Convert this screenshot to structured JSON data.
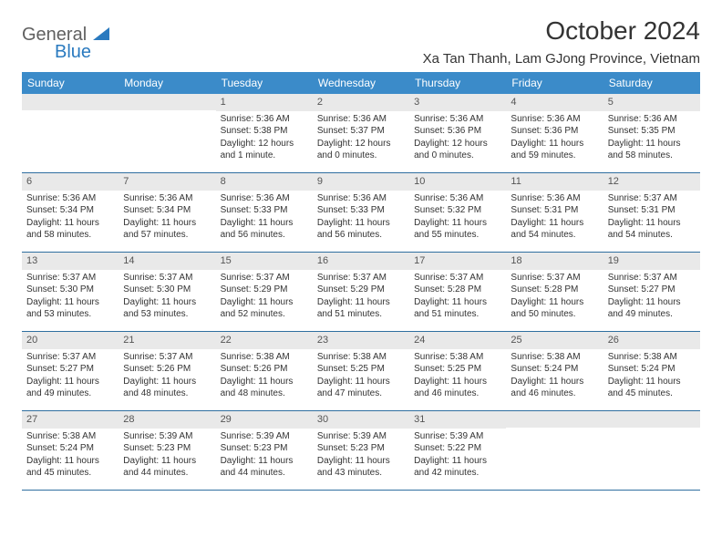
{
  "logo": {
    "general": "General",
    "blue": "Blue"
  },
  "title": "October 2024",
  "location": "Xa Tan Thanh, Lam GJong Province, Vietnam",
  "colors": {
    "header_bg": "#3b8bc9",
    "header_text": "#ffffff",
    "daynum_bg": "#e9e9e9",
    "border": "#2f6fa0",
    "text": "#333333",
    "logo_gray": "#606060",
    "logo_blue": "#2a7abf"
  },
  "dow": [
    "Sunday",
    "Monday",
    "Tuesday",
    "Wednesday",
    "Thursday",
    "Friday",
    "Saturday"
  ],
  "weeks": [
    [
      null,
      null,
      {
        "n": "1",
        "sr": "Sunrise: 5:36 AM",
        "ss": "Sunset: 5:38 PM",
        "dl": "Daylight: 12 hours and 1 minute."
      },
      {
        "n": "2",
        "sr": "Sunrise: 5:36 AM",
        "ss": "Sunset: 5:37 PM",
        "dl": "Daylight: 12 hours and 0 minutes."
      },
      {
        "n": "3",
        "sr": "Sunrise: 5:36 AM",
        "ss": "Sunset: 5:36 PM",
        "dl": "Daylight: 12 hours and 0 minutes."
      },
      {
        "n": "4",
        "sr": "Sunrise: 5:36 AM",
        "ss": "Sunset: 5:36 PM",
        "dl": "Daylight: 11 hours and 59 minutes."
      },
      {
        "n": "5",
        "sr": "Sunrise: 5:36 AM",
        "ss": "Sunset: 5:35 PM",
        "dl": "Daylight: 11 hours and 58 minutes."
      }
    ],
    [
      {
        "n": "6",
        "sr": "Sunrise: 5:36 AM",
        "ss": "Sunset: 5:34 PM",
        "dl": "Daylight: 11 hours and 58 minutes."
      },
      {
        "n": "7",
        "sr": "Sunrise: 5:36 AM",
        "ss": "Sunset: 5:34 PM",
        "dl": "Daylight: 11 hours and 57 minutes."
      },
      {
        "n": "8",
        "sr": "Sunrise: 5:36 AM",
        "ss": "Sunset: 5:33 PM",
        "dl": "Daylight: 11 hours and 56 minutes."
      },
      {
        "n": "9",
        "sr": "Sunrise: 5:36 AM",
        "ss": "Sunset: 5:33 PM",
        "dl": "Daylight: 11 hours and 56 minutes."
      },
      {
        "n": "10",
        "sr": "Sunrise: 5:36 AM",
        "ss": "Sunset: 5:32 PM",
        "dl": "Daylight: 11 hours and 55 minutes."
      },
      {
        "n": "11",
        "sr": "Sunrise: 5:36 AM",
        "ss": "Sunset: 5:31 PM",
        "dl": "Daylight: 11 hours and 54 minutes."
      },
      {
        "n": "12",
        "sr": "Sunrise: 5:37 AM",
        "ss": "Sunset: 5:31 PM",
        "dl": "Daylight: 11 hours and 54 minutes."
      }
    ],
    [
      {
        "n": "13",
        "sr": "Sunrise: 5:37 AM",
        "ss": "Sunset: 5:30 PM",
        "dl": "Daylight: 11 hours and 53 minutes."
      },
      {
        "n": "14",
        "sr": "Sunrise: 5:37 AM",
        "ss": "Sunset: 5:30 PM",
        "dl": "Daylight: 11 hours and 53 minutes."
      },
      {
        "n": "15",
        "sr": "Sunrise: 5:37 AM",
        "ss": "Sunset: 5:29 PM",
        "dl": "Daylight: 11 hours and 52 minutes."
      },
      {
        "n": "16",
        "sr": "Sunrise: 5:37 AM",
        "ss": "Sunset: 5:29 PM",
        "dl": "Daylight: 11 hours and 51 minutes."
      },
      {
        "n": "17",
        "sr": "Sunrise: 5:37 AM",
        "ss": "Sunset: 5:28 PM",
        "dl": "Daylight: 11 hours and 51 minutes."
      },
      {
        "n": "18",
        "sr": "Sunrise: 5:37 AM",
        "ss": "Sunset: 5:28 PM",
        "dl": "Daylight: 11 hours and 50 minutes."
      },
      {
        "n": "19",
        "sr": "Sunrise: 5:37 AM",
        "ss": "Sunset: 5:27 PM",
        "dl": "Daylight: 11 hours and 49 minutes."
      }
    ],
    [
      {
        "n": "20",
        "sr": "Sunrise: 5:37 AM",
        "ss": "Sunset: 5:27 PM",
        "dl": "Daylight: 11 hours and 49 minutes."
      },
      {
        "n": "21",
        "sr": "Sunrise: 5:37 AM",
        "ss": "Sunset: 5:26 PM",
        "dl": "Daylight: 11 hours and 48 minutes."
      },
      {
        "n": "22",
        "sr": "Sunrise: 5:38 AM",
        "ss": "Sunset: 5:26 PM",
        "dl": "Daylight: 11 hours and 48 minutes."
      },
      {
        "n": "23",
        "sr": "Sunrise: 5:38 AM",
        "ss": "Sunset: 5:25 PM",
        "dl": "Daylight: 11 hours and 47 minutes."
      },
      {
        "n": "24",
        "sr": "Sunrise: 5:38 AM",
        "ss": "Sunset: 5:25 PM",
        "dl": "Daylight: 11 hours and 46 minutes."
      },
      {
        "n": "25",
        "sr": "Sunrise: 5:38 AM",
        "ss": "Sunset: 5:24 PM",
        "dl": "Daylight: 11 hours and 46 minutes."
      },
      {
        "n": "26",
        "sr": "Sunrise: 5:38 AM",
        "ss": "Sunset: 5:24 PM",
        "dl": "Daylight: 11 hours and 45 minutes."
      }
    ],
    [
      {
        "n": "27",
        "sr": "Sunrise: 5:38 AM",
        "ss": "Sunset: 5:24 PM",
        "dl": "Daylight: 11 hours and 45 minutes."
      },
      {
        "n": "28",
        "sr": "Sunrise: 5:39 AM",
        "ss": "Sunset: 5:23 PM",
        "dl": "Daylight: 11 hours and 44 minutes."
      },
      {
        "n": "29",
        "sr": "Sunrise: 5:39 AM",
        "ss": "Sunset: 5:23 PM",
        "dl": "Daylight: 11 hours and 44 minutes."
      },
      {
        "n": "30",
        "sr": "Sunrise: 5:39 AM",
        "ss": "Sunset: 5:23 PM",
        "dl": "Daylight: 11 hours and 43 minutes."
      },
      {
        "n": "31",
        "sr": "Sunrise: 5:39 AM",
        "ss": "Sunset: 5:22 PM",
        "dl": "Daylight: 11 hours and 42 minutes."
      },
      null,
      null
    ]
  ]
}
